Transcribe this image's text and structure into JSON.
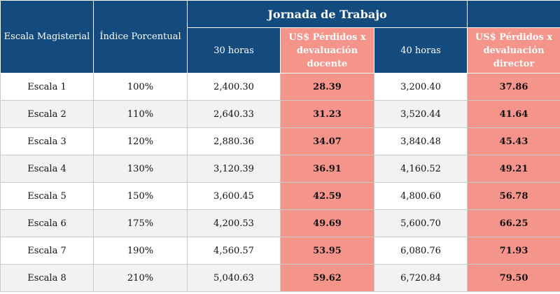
{
  "header": {
    "col_scale": "Escala Magisterial",
    "col_index": "Índice Porcentual",
    "group_title": "Jornada de Trabajo",
    "col_30h": "30 horas",
    "col_loss_teacher": "US$ Pérdidos x devaluación docente",
    "col_40h": "40 horas",
    "col_loss_director": "US$ Pérdidos x devaluación director"
  },
  "rows": [
    {
      "scale": "Escala 1",
      "index": "100%",
      "h30": "2,400.30",
      "loss_teacher": "28.39",
      "h40": "3,200.40",
      "loss_director": "37.86"
    },
    {
      "scale": "Escala 2",
      "index": "110%",
      "h30": "2,640.33",
      "loss_teacher": "31.23",
      "h40": "3,520.44",
      "loss_director": "41.64"
    },
    {
      "scale": "Escala 3",
      "index": "120%",
      "h30": "2,880.36",
      "loss_teacher": "34.07",
      "h40": "3,840.48",
      "loss_director": "45.43"
    },
    {
      "scale": "Escala 4",
      "index": "130%",
      "h30": "3,120.39",
      "loss_teacher": "36.91",
      "h40": "4,160.52",
      "loss_director": "49.21"
    },
    {
      "scale": "Escala 5",
      "index": "150%",
      "h30": "3,600.45",
      "loss_teacher": "42.59",
      "h40": "4,800.60",
      "loss_director": "56.78"
    },
    {
      "scale": "Escala 6",
      "index": "175%",
      "h30": "4,200.53",
      "loss_teacher": "49.69",
      "h40": "5,600.70",
      "loss_director": "66.25"
    },
    {
      "scale": "Escala 7",
      "index": "190%",
      "h30": "4,560.57",
      "loss_teacher": "53.95",
      "h40": "6,080.76",
      "loss_director": "71.93"
    },
    {
      "scale": "Escala 8",
      "index": "210%",
      "h30": "5,040.63",
      "loss_teacher": "59.62",
      "h40": "6,720.84",
      "loss_director": "79.50"
    }
  ],
  "colors": {
    "header_blue": "#144b7f",
    "highlight_red": "#f5948a"
  }
}
